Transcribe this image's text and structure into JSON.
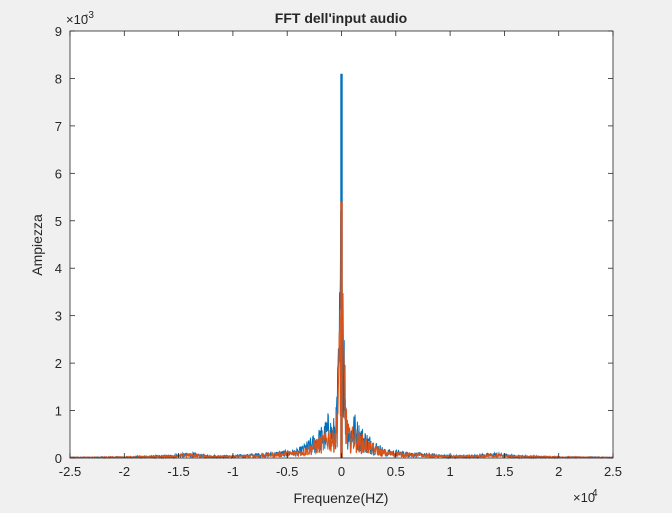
{
  "chart_data": {
    "type": "line",
    "title": "FFT dell'input audio",
    "xlabel": "Frequenze(HZ)",
    "ylabel": "Ampiezza",
    "x_exponent_label": "×10",
    "x_exponent": "4",
    "y_exponent_label": "×10",
    "y_exponent": "-3",
    "xlim": [
      -2.5,
      2.5
    ],
    "ylim": [
      0,
      9
    ],
    "xticks": [
      -2.5,
      -2,
      -1.5,
      -1,
      -0.5,
      0,
      0.5,
      1,
      1.5,
      2,
      2.5
    ],
    "xtick_labels": [
      "-2.5",
      "-2",
      "-1.5",
      "-1",
      "-0.5",
      "0",
      "0.5",
      "1",
      "1.5",
      "2",
      "2.5"
    ],
    "yticks": [
      0,
      1,
      2,
      3,
      4,
      5,
      6,
      7,
      8,
      9
    ],
    "ytick_labels": [
      "0",
      "1",
      "2",
      "3",
      "4",
      "5",
      "6",
      "7",
      "8",
      "9"
    ],
    "grid": false,
    "legend": "none",
    "series": [
      {
        "color": "#0072BD",
        "peak": [
          0,
          8.1
        ],
        "envelope": [
          [
            -2.5,
            0.02
          ],
          [
            -2.0,
            0.03
          ],
          [
            -1.6,
            0.06
          ],
          [
            -1.4,
            0.12
          ],
          [
            -1.2,
            0.06
          ],
          [
            -1.0,
            0.06
          ],
          [
            -0.8,
            0.1
          ],
          [
            -0.6,
            0.14
          ],
          [
            -0.4,
            0.2
          ],
          [
            -0.3,
            0.4
          ],
          [
            -0.2,
            0.65
          ],
          [
            -0.15,
            0.8
          ],
          [
            -0.12,
            1.0
          ],
          [
            -0.08,
            0.8
          ],
          [
            -0.05,
            1.1
          ],
          [
            -0.03,
            2.4
          ],
          [
            -0.01,
            4.8
          ],
          [
            0,
            8.1
          ],
          [
            0.01,
            4.8
          ],
          [
            0.03,
            2.4
          ],
          [
            0.05,
            1.1
          ],
          [
            0.08,
            0.8
          ],
          [
            0.12,
            1.0
          ],
          [
            0.15,
            0.8
          ],
          [
            0.2,
            0.65
          ],
          [
            0.3,
            0.4
          ],
          [
            0.4,
            0.2
          ],
          [
            0.6,
            0.14
          ],
          [
            0.8,
            0.1
          ],
          [
            1.0,
            0.06
          ],
          [
            1.2,
            0.06
          ],
          [
            1.4,
            0.12
          ],
          [
            1.6,
            0.06
          ],
          [
            2.0,
            0.03
          ],
          [
            2.5,
            0.02
          ]
        ]
      },
      {
        "color": "#D95319",
        "peak": [
          0,
          5.4
        ],
        "envelope": [
          [
            -2.5,
            0.02
          ],
          [
            -2.0,
            0.03
          ],
          [
            -1.6,
            0.05
          ],
          [
            -1.4,
            0.1
          ],
          [
            -1.2,
            0.05
          ],
          [
            -1.0,
            0.05
          ],
          [
            -0.8,
            0.08
          ],
          [
            -0.6,
            0.12
          ],
          [
            -0.4,
            0.17
          ],
          [
            -0.3,
            0.3
          ],
          [
            -0.2,
            0.5
          ],
          [
            -0.15,
            0.6
          ],
          [
            -0.12,
            0.75
          ],
          [
            -0.08,
            0.6
          ],
          [
            -0.05,
            0.9
          ],
          [
            -0.03,
            2.0
          ],
          [
            -0.01,
            3.9
          ],
          [
            0,
            5.4
          ],
          [
            0.01,
            3.9
          ],
          [
            0.03,
            2.0
          ],
          [
            0.05,
            0.9
          ],
          [
            0.08,
            0.6
          ],
          [
            0.12,
            0.75
          ],
          [
            0.15,
            0.6
          ],
          [
            0.2,
            0.5
          ],
          [
            0.3,
            0.3
          ],
          [
            0.4,
            0.17
          ],
          [
            0.6,
            0.12
          ],
          [
            0.8,
            0.08
          ],
          [
            1.0,
            0.05
          ],
          [
            1.2,
            0.05
          ],
          [
            1.4,
            0.1
          ],
          [
            1.6,
            0.05
          ],
          [
            2.0,
            0.03
          ],
          [
            2.5,
            0.02
          ]
        ]
      }
    ]
  }
}
